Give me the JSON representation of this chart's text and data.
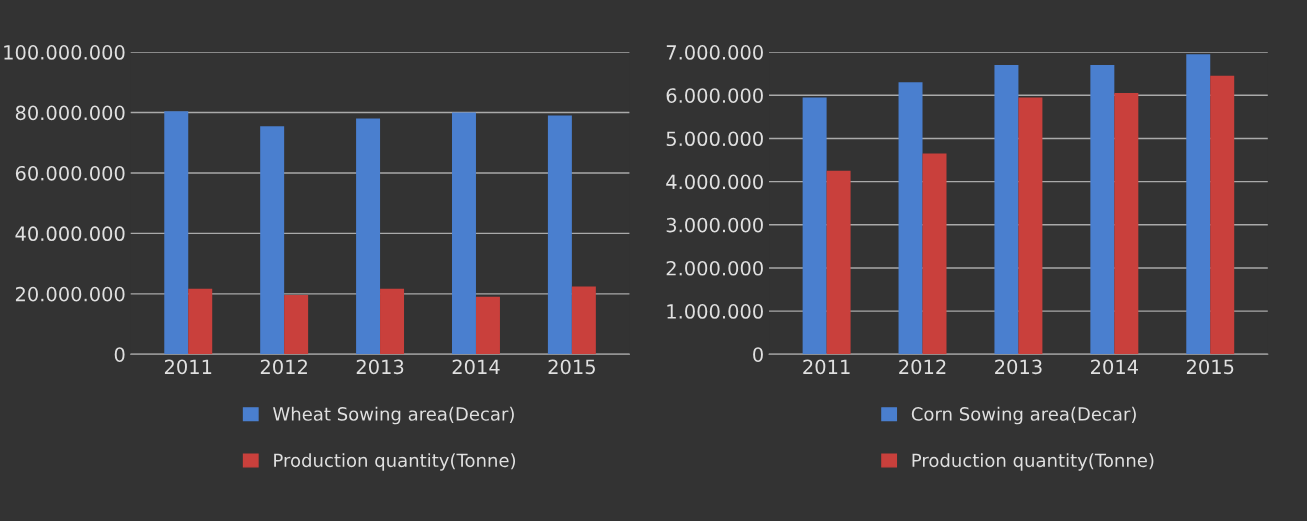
{
  "chart_data": [
    {
      "type": "bar",
      "categories": [
        "2011",
        "2012",
        "2013",
        "2014",
        "2015"
      ],
      "series": [
        {
          "name": "Wheat Sowing area(Decar)",
          "color": "#4a7fcf",
          "values": [
            80400000,
            75500000,
            78000000,
            80000000,
            79000000
          ]
        },
        {
          "name": "Production quantity(Tonne)",
          "color": "#c9403c",
          "values": [
            21700000,
            19600000,
            21700000,
            19000000,
            22400000
          ]
        }
      ],
      "ylim": [
        0,
        100000000
      ],
      "yticks": [
        {
          "value": 0,
          "label": "0"
        },
        {
          "value": 20000000,
          "label": "20.000.000"
        },
        {
          "value": 40000000,
          "label": "40.000.000"
        },
        {
          "value": 60000000,
          "label": "60.000.000"
        },
        {
          "value": 80000000,
          "label": "80.000.000"
        },
        {
          "value": 100000000,
          "label": "100.000.000"
        }
      ],
      "grid": "y",
      "legend": "bottom"
    },
    {
      "type": "bar",
      "categories": [
        "2011",
        "2012",
        "2013",
        "2014",
        "2015"
      ],
      "series": [
        {
          "name": "Corn Sowing area(Decar)",
          "color": "#4a7fcf",
          "values": [
            5950000,
            6300000,
            6700000,
            6700000,
            6950000
          ]
        },
        {
          "name": "Production quantity(Tonne)",
          "color": "#c9403c",
          "values": [
            4250000,
            4650000,
            5950000,
            6050000,
            6450000
          ]
        }
      ],
      "ylim": [
        0,
        7000000
      ],
      "yticks": [
        {
          "value": 0,
          "label": "0"
        },
        {
          "value": 1000000,
          "label": "1.000.000"
        },
        {
          "value": 2000000,
          "label": "2.000.000"
        },
        {
          "value": 3000000,
          "label": "3.000.000"
        },
        {
          "value": 4000000,
          "label": "4.000.000"
        },
        {
          "value": 5000000,
          "label": "5.000.000"
        },
        {
          "value": 6000000,
          "label": "6.000.000"
        },
        {
          "value": 7000000,
          "label": "7.000.000"
        }
      ],
      "grid": "y",
      "legend": "bottom"
    }
  ]
}
